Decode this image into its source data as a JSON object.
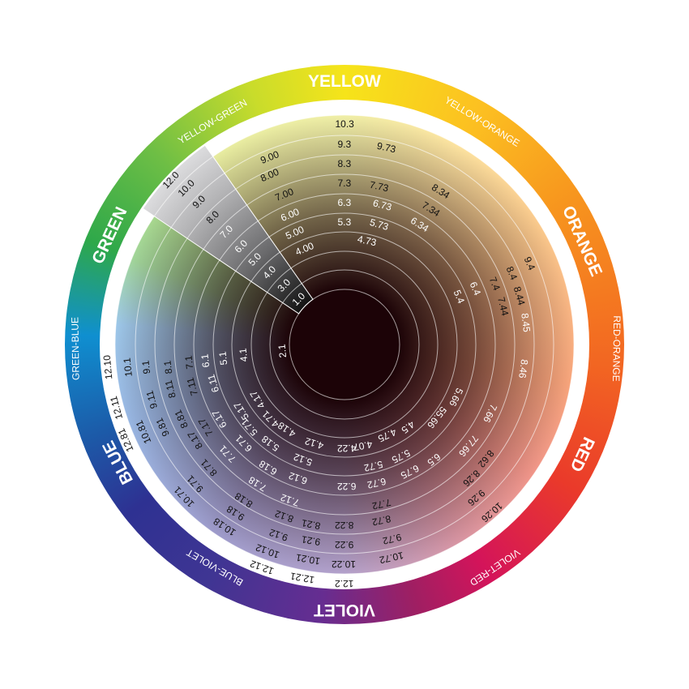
{
  "wheel": {
    "hue_ring_labels": [
      "YELLOW",
      "YELLOW-ORANGE",
      "ORANGE",
      "RED-ORANGE",
      "RED",
      "VIOLET-RED",
      "VIOLET",
      "BLUE-VIOLET",
      "BLUE",
      "GREEN-BLUE",
      "GREEN",
      "YELLOW-GREEN"
    ],
    "gray_scale_labels": [
      "1.0",
      "3.0",
      "4.0",
      "5.0",
      "6.0",
      "7.0",
      "8.0",
      "9.0",
      "10.0",
      "12.0"
    ],
    "shade_labels": [
      "10.3",
      "9.3",
      "8.3",
      "7.3",
      "6.3",
      "5.3",
      "9.00",
      "8.00",
      "7.00",
      "6.00",
      "5.00",
      "4.00",
      "9.73",
      "7.73",
      "6.73",
      "5.73",
      "4.73",
      "8.34",
      "7.34",
      "6.34",
      "9.4",
      "8.4",
      "8.44",
      "8.45",
      "7.4",
      "7.44",
      "6.4",
      "5.4",
      "8.46",
      "5.66",
      "55.66",
      "7.66",
      "77.66",
      "8.62",
      "8.26",
      "9.26",
      "10.26",
      "4.5",
      "4.75",
      "4.07",
      "4.22",
      "5.75",
      "5.72",
      "6.5",
      "6.75",
      "6.72",
      "6.22",
      "7.72",
      "8.72",
      "9.72",
      "10.72",
      "8.22",
      "9.22",
      "10.22",
      "12.2",
      "12.10",
      "10.1",
      "9.1",
      "8.1",
      "7.1",
      "6.1",
      "5.1",
      "4.1",
      "2.1",
      "12.11",
      "9.11",
      "8.11",
      "7.11",
      "6.11",
      "12.81",
      "10.81",
      "9.81",
      "8.81",
      "8.17",
      "7.17",
      "6.17",
      "5.17",
      "4.17",
      "4.71",
      "4.18",
      "4.12",
      "5.71",
      "5.18",
      "5.12",
      "6.71",
      "6.18",
      "6.12",
      "7.71",
      "7.18",
      "7.12",
      "8.71",
      "8.18",
      "8.12",
      "8.21",
      "9.71",
      "9.18",
      "9.12",
      "9.21",
      "10.71",
      "10.18",
      "10.12",
      "10.21",
      "12.12",
      "12.21"
    ],
    "colors": {
      "yellow": "#f6e41a",
      "orange": "#f7941e",
      "red": "#ea3a2a",
      "violet": "#662d91",
      "blue": "#2e3192",
      "green": "#2ea84a",
      "core": "#1c0307"
    }
  }
}
